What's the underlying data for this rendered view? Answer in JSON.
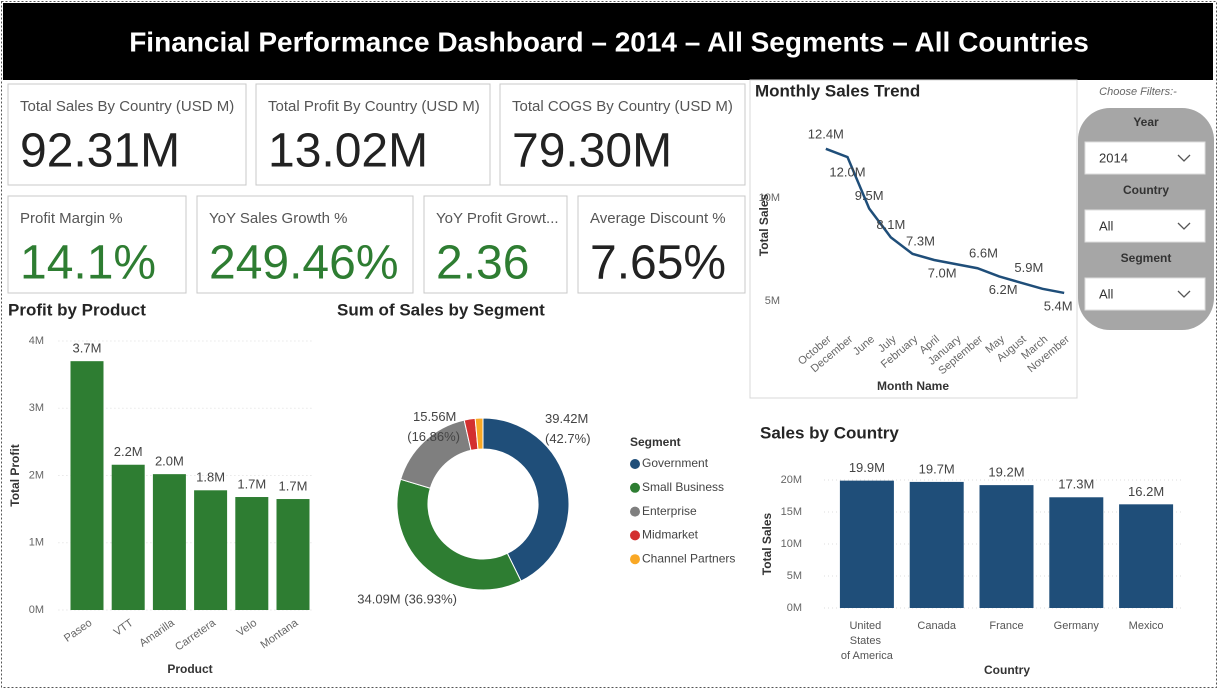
{
  "header": {
    "title": "Financial Performance Dashboard – 2014 – All Segments – All Countries"
  },
  "kpis": [
    {
      "label": "Total Sales By Country (USD M)",
      "value": "92.31M",
      "color": "#222222"
    },
    {
      "label": "Total Profit By Country (USD M)",
      "value": "13.02M",
      "color": "#222222"
    },
    {
      "label": "Total COGS By Country (USD M)",
      "value": "79.30M",
      "color": "#222222"
    },
    {
      "label": "Profit Margin %",
      "value": "14.1%",
      "color": "#2e7d32"
    },
    {
      "label": "YoY Sales Growth %",
      "value": "249.46%",
      "color": "#2e7d32"
    },
    {
      "label": "YoY Profit Growt...",
      "value": "2.36",
      "color": "#2e7d32"
    },
    {
      "label": "Average Discount %",
      "value": "7.65%",
      "color": "#222222"
    }
  ],
  "filters": {
    "label": "Choose Filters:-",
    "items": [
      {
        "label": "Year",
        "value": "2014"
      },
      {
        "label": "Country",
        "value": "All"
      },
      {
        "label": "Segment",
        "value": "All"
      }
    ]
  },
  "chart_data": [
    {
      "type": "line",
      "title": "Monthly Sales Trend",
      "x_label": "Month Name",
      "y_label": "Total Sales",
      "categories": [
        "October",
        "December",
        "June",
        "July",
        "February",
        "April",
        "January",
        "September",
        "May",
        "August",
        "March",
        "November"
      ],
      "values": [
        12400000,
        12000000,
        9500000,
        8100000,
        7300000,
        7000000,
        6800000,
        6600000,
        6200000,
        5900000,
        5600000,
        5400000
      ],
      "value_labels": [
        "12.4M",
        "12.0M",
        "9.5M",
        "8.1M",
        "7.3M",
        "7.0M",
        null,
        "6.6M",
        "6.2M",
        "5.9M",
        null,
        "5.4M"
      ],
      "color": "#1f4e79",
      "ylim": [
        3600000,
        13800000
      ],
      "yticks": [
        {
          "value": 5000000,
          "label": "5M"
        },
        {
          "value": 10000000,
          "label": "10M"
        }
      ],
      "grid": false
    },
    {
      "type": "bar",
      "title": "Profit by Product",
      "x_label": "Product",
      "y_label": "Total Profit",
      "categories": [
        "Paseo",
        "VTT",
        "Amarilla",
        "Carretera",
        "Velo",
        "Montana"
      ],
      "values": [
        3700000,
        2160000,
        2020000,
        1780000,
        1680000,
        1650000
      ],
      "value_labels": [
        "3.7M",
        "2.2M",
        "2.0M",
        "1.8M",
        "1.7M",
        "1.7M"
      ],
      "color": "#2e7d32",
      "ylim": [
        0,
        4000000
      ],
      "yticks": [
        {
          "value": 0,
          "label": "0M"
        },
        {
          "value": 1000000,
          "label": "1M"
        },
        {
          "value": 2000000,
          "label": "2M"
        },
        {
          "value": 3000000,
          "label": "3M"
        },
        {
          "value": 4000000,
          "label": "4M"
        }
      ],
      "grid": true
    },
    {
      "type": "pie",
      "title": "Sum of Sales by Segment",
      "legend_title": "Segment",
      "legend": "right",
      "donut": true,
      "categories": [
        "Government",
        "Small Business",
        "Enterprise",
        "Midmarket",
        "Channel Partners"
      ],
      "values": [
        39420000,
        34090000,
        15560000,
        1900000,
        1340000
      ],
      "value_labels": [
        "39.42M (42.7%)",
        "34.09M (36.93%)",
        "15.56M (16.86%)",
        null,
        null
      ],
      "colors": [
        "#1f4e79",
        "#2e7d32",
        "#7f7f7f",
        "#d32f2f",
        "#f9a825"
      ]
    },
    {
      "type": "bar",
      "title": "Sales by Country",
      "x_label": "Country",
      "y_label": "Total Sales",
      "categories": [
        "United States of America",
        "Canada",
        "France",
        "Germany",
        "Mexico"
      ],
      "values": [
        19900000,
        19700000,
        19200000,
        17300000,
        16200000
      ],
      "value_labels": [
        "19.9M",
        "19.7M",
        "19.2M",
        "17.3M",
        "16.2M"
      ],
      "color": "#1f4e79",
      "ylim": [
        0,
        20000000
      ],
      "yticks": [
        {
          "value": 0,
          "label": "0M"
        },
        {
          "value": 5000000,
          "label": "5M"
        },
        {
          "value": 10000000,
          "label": "10M"
        },
        {
          "value": 15000000,
          "label": "15M"
        },
        {
          "value": 20000000,
          "label": "20M"
        }
      ],
      "grid": true
    }
  ]
}
